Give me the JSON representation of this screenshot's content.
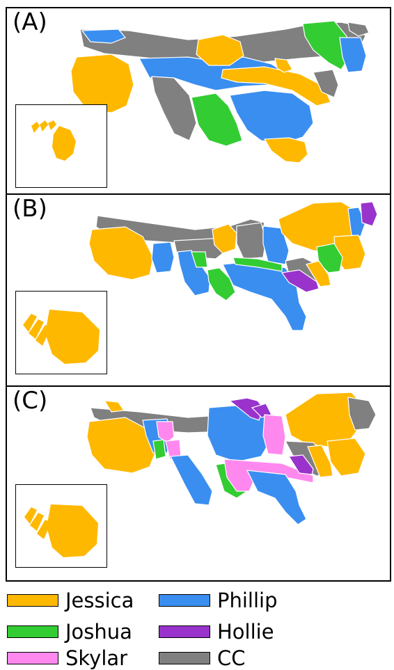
{
  "colors": {
    "Jessica": "#FFB800",
    "Phillip": "#3A8EF0",
    "Joshua": "#33CC33",
    "Hollie": "#9933CC",
    "Skylar": "#FF88EE",
    "CC": "#808080"
  },
  "panels": [
    {
      "label": "(A)"
    },
    {
      "label": "(B)"
    },
    {
      "label": "(C)"
    }
  ],
  "legend": {
    "jessica": "Jessica",
    "phillip": "Phillip",
    "joshua": "Joshua",
    "hollie": "Hollie",
    "skylar": "Skylar",
    "cc": "CC"
  }
}
